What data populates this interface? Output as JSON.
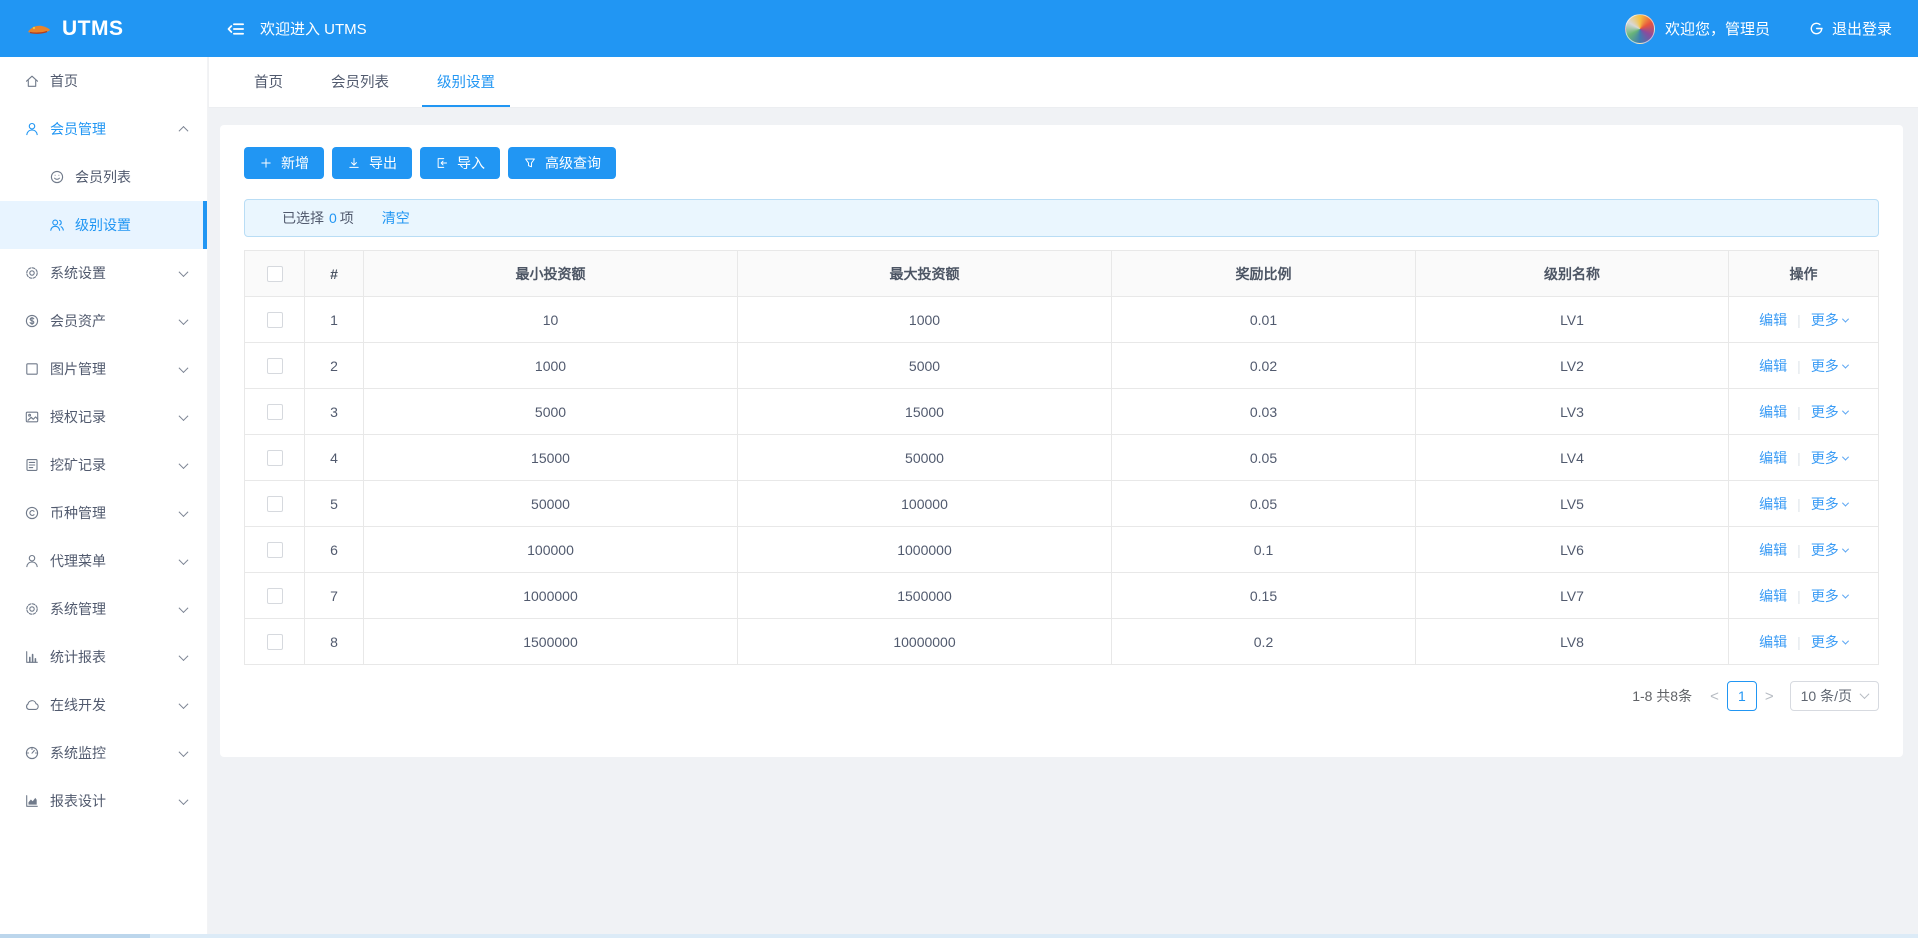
{
  "colors": {
    "primary": "#2196f3",
    "link": "#3b9cf5",
    "header_bg": "#2196f3",
    "sidebar_active_bg": "#e8f4ff",
    "alert_bg": "#eaf6fe",
    "alert_border": "#b9ddf5",
    "table_border": "#e8e8e8",
    "table_header_bg": "#fafafa"
  },
  "header": {
    "logo_text": "UTMS",
    "welcome": "欢迎进入 UTMS",
    "greeting": "欢迎您，管理员",
    "logout_label": "退出登录",
    "collapse_icon": "outdent-icon",
    "logout_icon": "logout-icon",
    "avatar_icon": "user-avatar"
  },
  "tabs": [
    {
      "id": "home",
      "label": "首页",
      "active": false
    },
    {
      "id": "member-list",
      "label": "会员列表",
      "active": false
    },
    {
      "id": "level-settings",
      "label": "级别设置",
      "active": true
    }
  ],
  "sidebar": {
    "items": [
      {
        "id": "home",
        "label": "首页",
        "icon": "home-icon",
        "type": "top",
        "chevron": ""
      },
      {
        "id": "member-management",
        "label": "会员管理",
        "icon": "user-icon",
        "type": "top",
        "chevron": "up",
        "highlight": true
      },
      {
        "id": "member-list",
        "label": "会员列表",
        "icon": "smile-icon",
        "type": "sub",
        "chevron": ""
      },
      {
        "id": "level-settings",
        "label": "级别设置",
        "icon": "team-icon",
        "type": "sub",
        "chevron": "",
        "active": true
      },
      {
        "id": "system-settings",
        "label": "系统设置",
        "icon": "gear-icon",
        "type": "top",
        "chevron": "down"
      },
      {
        "id": "member-assets",
        "label": "会员资产",
        "icon": "dollar-icon",
        "type": "top",
        "chevron": "down"
      },
      {
        "id": "image-management",
        "label": "图片管理",
        "icon": "square-icon",
        "type": "top",
        "chevron": "down"
      },
      {
        "id": "authorization-records",
        "label": "授权记录",
        "icon": "picture-icon",
        "type": "top",
        "chevron": "down"
      },
      {
        "id": "mining-records",
        "label": "挖矿记录",
        "icon": "document-icon",
        "type": "top",
        "chevron": "down"
      },
      {
        "id": "coin-management",
        "label": "币种管理",
        "icon": "copyright-icon",
        "type": "top",
        "chevron": "down"
      },
      {
        "id": "agent-menu",
        "label": "代理菜单",
        "icon": "person-icon",
        "type": "top",
        "chevron": "down"
      },
      {
        "id": "system-management",
        "label": "系统管理",
        "icon": "gear-icon",
        "type": "top",
        "chevron": "down"
      },
      {
        "id": "statistics-report",
        "label": "统计报表",
        "icon": "bar-chart-icon",
        "type": "top",
        "chevron": "down"
      },
      {
        "id": "online-development",
        "label": "在线开发",
        "icon": "cloud-icon",
        "type": "top",
        "chevron": "down"
      },
      {
        "id": "system-monitor",
        "label": "系统监控",
        "icon": "gauge-icon",
        "type": "top",
        "chevron": "down"
      },
      {
        "id": "report-design",
        "label": "报表设计",
        "icon": "area-chart-icon",
        "type": "top",
        "chevron": "down"
      }
    ]
  },
  "toolbar": {
    "buttons": [
      {
        "id": "add",
        "label": "新增",
        "icon": "plus-icon"
      },
      {
        "id": "export",
        "label": "导出",
        "icon": "download-icon"
      },
      {
        "id": "import",
        "label": "导入",
        "icon": "import-icon"
      },
      {
        "id": "advanced-query",
        "label": "高级查询",
        "icon": "filter-icon"
      }
    ]
  },
  "selection_bar": {
    "selected_prefix": "已选择",
    "selected_count": "0",
    "selected_suffix": "项",
    "clear_label": "清空"
  },
  "table": {
    "columns": [
      "#",
      "最小投资额",
      "最大投资额",
      "奖励比例",
      "级别名称",
      "操作"
    ],
    "rows": [
      {
        "index": "1",
        "min": "10",
        "max": "1000",
        "ratio": "0.01",
        "level": "LV1"
      },
      {
        "index": "2",
        "min": "1000",
        "max": "5000",
        "ratio": "0.02",
        "level": "LV2"
      },
      {
        "index": "3",
        "min": "5000",
        "max": "15000",
        "ratio": "0.03",
        "level": "LV3"
      },
      {
        "index": "4",
        "min": "15000",
        "max": "50000",
        "ratio": "0.05",
        "level": "LV4"
      },
      {
        "index": "5",
        "min": "50000",
        "max": "100000",
        "ratio": "0.05",
        "level": "LV5"
      },
      {
        "index": "6",
        "min": "100000",
        "max": "1000000",
        "ratio": "0.1",
        "level": "LV6"
      },
      {
        "index": "7",
        "min": "1000000",
        "max": "1500000",
        "ratio": "0.15",
        "level": "LV7"
      },
      {
        "index": "8",
        "min": "1500000",
        "max": "10000000",
        "ratio": "0.2",
        "level": "LV8"
      }
    ],
    "actions": {
      "edit": "编辑",
      "more": "更多"
    }
  },
  "pagination": {
    "range_total": "1-8 共8条",
    "prev": "<",
    "page": "1",
    "next": ">",
    "page_size": "10 条/页"
  }
}
